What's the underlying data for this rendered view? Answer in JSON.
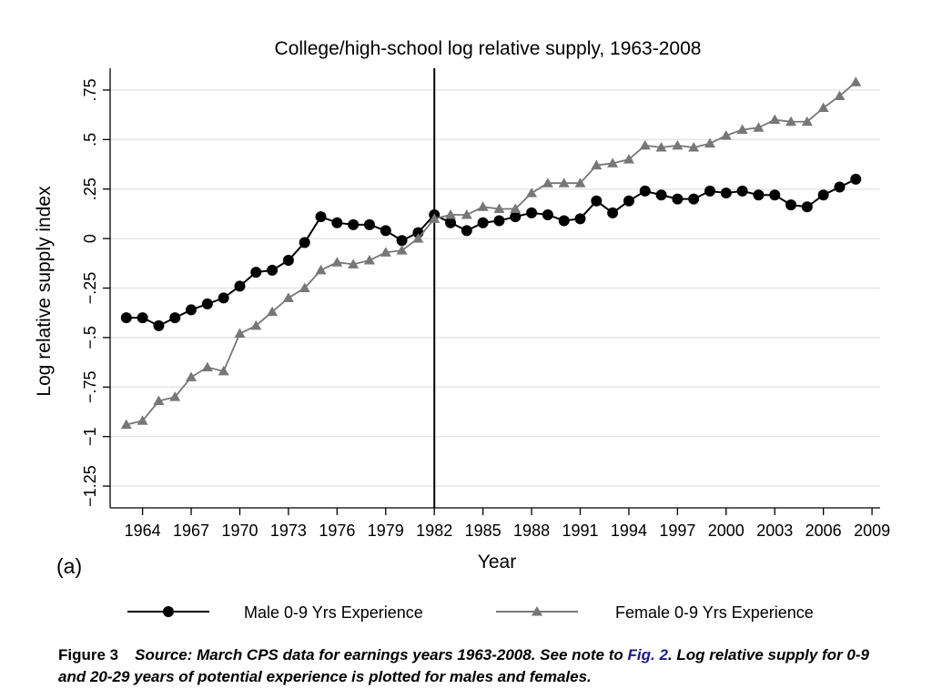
{
  "chart_data": {
    "type": "line",
    "title": "College/high-school log relative supply, 1963-2008",
    "xlabel": "Year",
    "ylabel": "Log relative supply index",
    "panel_label": "(a)",
    "xlim": [
      1962,
      2009.5
    ],
    "ylim": [
      -1.36,
      0.86
    ],
    "x_ticks": [
      1964,
      1967,
      1970,
      1973,
      1976,
      1979,
      1982,
      1985,
      1988,
      1991,
      1994,
      1997,
      2000,
      2003,
      2006,
      2009
    ],
    "y_ticks": [
      {
        "value": 0.75,
        "label": ".75"
      },
      {
        "value": 0.5,
        "label": ".5"
      },
      {
        "value": 0.25,
        "label": ".25"
      },
      {
        "value": 0,
        "label": "0"
      },
      {
        "value": -0.25,
        "label": "−.25"
      },
      {
        "value": -0.5,
        "label": "−.5"
      },
      {
        "value": -0.75,
        "label": "−.75"
      },
      {
        "value": -1,
        "label": "−1"
      },
      {
        "value": -1.25,
        "label": "−1.25"
      }
    ],
    "grid": true,
    "vline_x": 1982,
    "legend_position": "bottom",
    "x": [
      1963,
      1964,
      1965,
      1966,
      1967,
      1968,
      1969,
      1970,
      1971,
      1972,
      1973,
      1974,
      1975,
      1976,
      1977,
      1978,
      1979,
      1980,
      1981,
      1982,
      1983,
      1984,
      1985,
      1986,
      1987,
      1988,
      1989,
      1990,
      1991,
      1992,
      1993,
      1994,
      1995,
      1996,
      1997,
      1998,
      1999,
      2000,
      2001,
      2002,
      2003,
      2004,
      2005,
      2006,
      2007,
      2008
    ],
    "series": [
      {
        "name": "Male 0-9 Yrs Experience",
        "color": "#000000",
        "marker": "circle",
        "values": [
          -0.4,
          -0.4,
          -0.44,
          -0.4,
          -0.36,
          -0.33,
          -0.3,
          -0.24,
          -0.17,
          -0.16,
          -0.11,
          -0.02,
          0.11,
          0.08,
          0.07,
          0.07,
          0.04,
          -0.01,
          0.03,
          0.12,
          0.08,
          0.04,
          0.08,
          0.09,
          0.11,
          0.13,
          0.12,
          0.09,
          0.1,
          0.19,
          0.13,
          0.19,
          0.24,
          0.22,
          0.2,
          0.2,
          0.24,
          0.23,
          0.24,
          0.22,
          0.22,
          0.17,
          0.16,
          0.22,
          0.26,
          0.3
        ]
      },
      {
        "name": "Female 0-9 Yrs Experience",
        "color": "#777777",
        "marker": "triangle",
        "values": [
          -0.94,
          -0.92,
          -0.82,
          -0.8,
          -0.7,
          -0.65,
          -0.67,
          -0.48,
          -0.44,
          -0.37,
          -0.3,
          -0.25,
          -0.16,
          -0.12,
          -0.13,
          -0.11,
          -0.07,
          -0.06,
          0.0,
          0.1,
          0.12,
          0.12,
          0.16,
          0.15,
          0.15,
          0.23,
          0.28,
          0.28,
          0.28,
          0.37,
          0.38,
          0.4,
          0.47,
          0.46,
          0.47,
          0.46,
          0.48,
          0.52,
          0.55,
          0.56,
          0.6,
          0.59,
          0.59,
          0.66,
          0.72,
          0.79
        ]
      }
    ]
  },
  "caption": {
    "label": "Figure 3",
    "text_before": "Source: March CPS data for earnings years 1963-2008. See note to ",
    "link_text": "Fig. 2",
    "text_after": ". Log relative supply for 0-9 and 20-29 years of potential experience is plotted for males and females."
  }
}
